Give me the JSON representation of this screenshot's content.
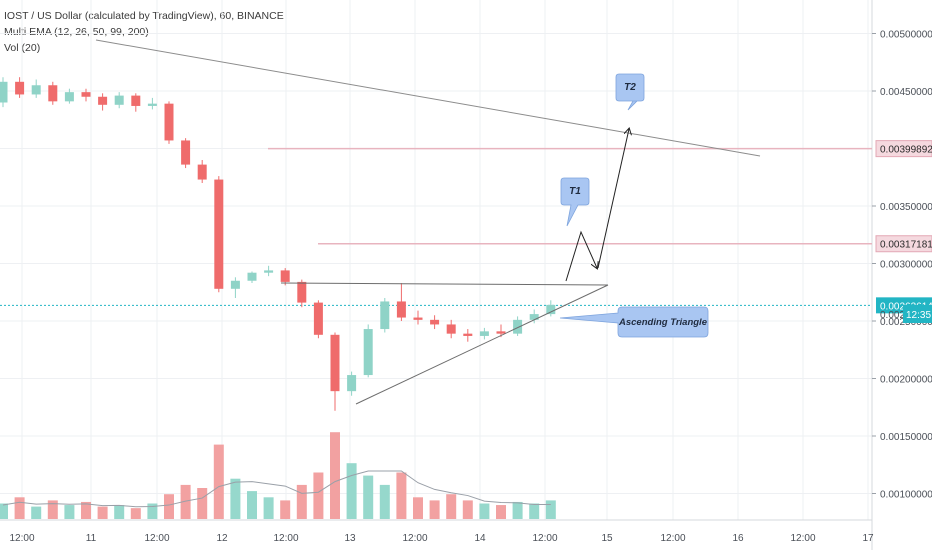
{
  "header": {
    "symbol_line": "IOST / US Dollar (calculated by TradingView), 60, BINANCE",
    "indicator_ema": "Multi EMA (12, 26, 50, 99, 200)",
    "indicator_vol": "Vol (20)"
  },
  "colors": {
    "up": "#8fd3c7",
    "down": "#ef6b6b",
    "up_vol": "#96d8cc",
    "down_vol": "#f2a1a1",
    "level_line": "#e8b4bf",
    "current_price": "#22b5c4",
    "callout": "#a9c6f2",
    "grid": "#eef0f3"
  },
  "chart_data": {
    "type": "candlestick",
    "title": "IOST / US Dollar (calculated by TradingView), 60, BINANCE",
    "ylim": [
      0.00085,
      0.005
    ],
    "y_ticks": [
      "0.00500000",
      "0.00450000",
      "0.00350000",
      "0.00300000",
      "0.00250000",
      "0.00200000",
      "0.00150000",
      "0.00100000"
    ],
    "x_ticks": [
      "12:00",
      "11",
      "12:00",
      "12",
      "12:00",
      "13",
      "12:00",
      "14",
      "12:00",
      "15",
      "12:00",
      "16",
      "12:00",
      "17"
    ],
    "candles_open": [
      0.0044,
      0.00458,
      0.00447,
      0.00455,
      0.00441,
      0.00449,
      0.00445,
      0.00438,
      0.00446,
      0.00437,
      0.00439,
      0.00407,
      0.00386,
      0.00373,
      0.00278,
      0.00285,
      0.00292,
      0.00294,
      0.00284,
      0.00266,
      0.00238,
      0.00189,
      0.00203,
      0.00243,
      0.00267,
      0.00253,
      0.00251,
      0.00247,
      0.00239,
      0.00237,
      0.00241,
      0.00239,
      0.00251,
      0.00256
    ],
    "candles_close": [
      0.00458,
      0.00447,
      0.00455,
      0.00441,
      0.00449,
      0.00445,
      0.00438,
      0.00446,
      0.00437,
      0.00439,
      0.00407,
      0.00386,
      0.00373,
      0.00278,
      0.00285,
      0.00292,
      0.00294,
      0.00284,
      0.00266,
      0.00238,
      0.00189,
      0.00203,
      0.00243,
      0.00267,
      0.00253,
      0.00251,
      0.00247,
      0.00239,
      0.00237,
      0.00241,
      0.00239,
      0.00251,
      0.00256,
      0.00264
    ],
    "candles_high": [
      0.00462,
      0.00462,
      0.0046,
      0.00458,
      0.00452,
      0.00452,
      0.00448,
      0.00449,
      0.00448,
      0.00444,
      0.00441,
      0.00409,
      0.0039,
      0.00376,
      0.00288,
      0.00293,
      0.00298,
      0.00296,
      0.00286,
      0.00268,
      0.0024,
      0.00206,
      0.00247,
      0.0027,
      0.00283,
      0.00259,
      0.00255,
      0.00251,
      0.00243,
      0.00244,
      0.00247,
      0.00254,
      0.0026,
      0.00268
    ],
    "candles_low": [
      0.00436,
      0.00444,
      0.00444,
      0.00438,
      0.00439,
      0.00441,
      0.00433,
      0.00435,
      0.00432,
      0.00434,
      0.00404,
      0.00383,
      0.0037,
      0.00275,
      0.0027,
      0.00283,
      0.00289,
      0.00281,
      0.00262,
      0.00235,
      0.00172,
      0.00185,
      0.00201,
      0.0024,
      0.0025,
      0.00247,
      0.00243,
      0.00235,
      0.00232,
      0.00234,
      0.00236,
      0.00237,
      0.00248,
      0.00254
    ],
    "volume": [
      10,
      14,
      8,
      12,
      9,
      11,
      8,
      9,
      7,
      10,
      16,
      22,
      20,
      48,
      26,
      18,
      14,
      12,
      22,
      30,
      56,
      36,
      28,
      22,
      30,
      14,
      12,
      16,
      12,
      10,
      9,
      11,
      10,
      12
    ],
    "levels": [
      {
        "price": 0.00399892,
        "label": "0.00399892"
      },
      {
        "price": 0.00317181,
        "label": "0.00317181"
      }
    ],
    "current_price": {
      "price": 0.00263614,
      "label": "0.00263614",
      "countdown": "12:35"
    },
    "annotations": [
      {
        "text": "T2"
      },
      {
        "text": "T1"
      },
      {
        "text": "Ascending Triangle"
      }
    ]
  }
}
